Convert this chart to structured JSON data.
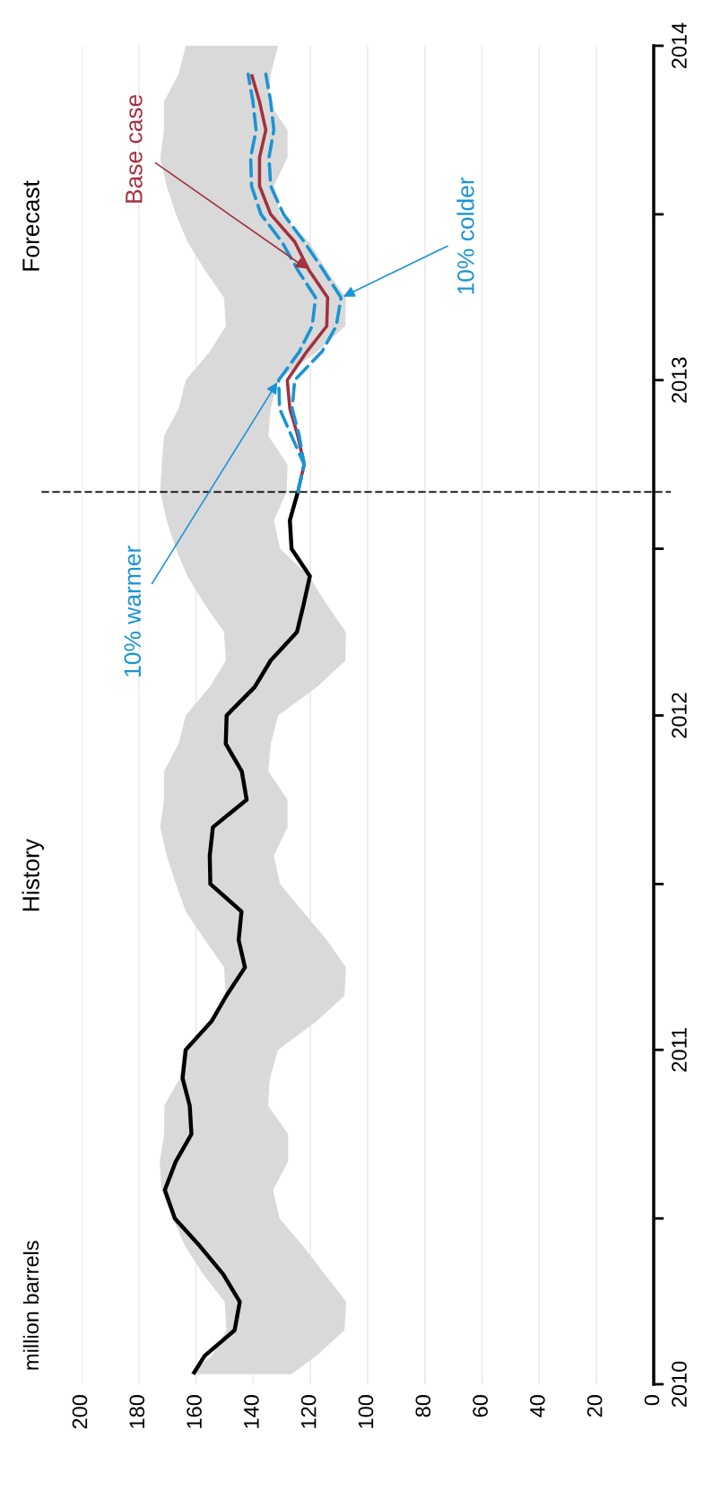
{
  "chart_data": {
    "type": "line",
    "ylabel": "million barrels",
    "annotations": [
      "History",
      "Forecast",
      {
        "text": "Base case",
        "y": "2013-05",
        "x": 120.5
      },
      {
        "text": "10% warmer",
        "y": "2013-01",
        "x": 131.1
      },
      {
        "text": "10% colder",
        "y": "2013-04",
        "x": 109.3
      }
    ],
    "orientation": "horizontal",
    "ylim": [
      "2010-01",
      "2014-01"
    ],
    "yticks": [
      {
        "value": "2010-01",
        "label": "2010"
      },
      {
        "value": "2010-07",
        "label": null
      },
      {
        "value": "2011-01",
        "label": "2011"
      },
      {
        "value": "2011-07",
        "label": null
      },
      {
        "value": "2012-01",
        "label": "2012"
      },
      {
        "value": "2012-07",
        "label": null
      },
      {
        "value": "2013-01",
        "label": "2013"
      },
      {
        "value": "2013-07",
        "label": null
      },
      {
        "value": "2014-01",
        "label": "2014"
      }
    ],
    "xlim": [
      200,
      0
    ],
    "xticks": [
      0,
      20,
      40,
      60,
      80,
      100,
      120,
      140,
      160,
      180,
      200
    ],
    "grid": "x",
    "line_style": "solid",
    "ref_lines": [
      {
        "axis": "y",
        "value": "2012-09",
        "line_style": "dashed",
        "color": "#000000"
      }
    ],
    "series": [
      {
        "color": "#000000",
        "x": [
          "2010-01-12",
          "2010-02",
          "2010-03",
          "2010-04",
          "2010-05",
          "2010-06",
          "2010-07",
          "2010-08",
          "2010-09",
          "2010-10",
          "2010-11",
          "2010-12",
          "2011-01",
          "2011-02",
          "2011-03",
          "2011-04",
          "2011-05",
          "2011-06",
          "2011-07",
          "2011-08",
          "2011-09",
          "2011-10",
          "2011-11",
          "2011-12",
          "2012-01",
          "2012-02",
          "2012-03",
          "2012-04",
          "2012-05",
          "2012-06",
          "2012-07",
          "2012-08",
          "2012-09",
          "2012-10",
          "2012-11",
          "2012-12",
          "2013-01",
          "2013-02",
          "2013-03",
          "2013-04",
          "2013-05",
          "2013-06",
          "2013-07",
          "2013-08",
          "2013-09",
          "2013-10",
          "2013-11",
          "2013-12",
          "2014-01"
        ],
        "values": [
          161.0,
          157.0,
          146.5,
          144.7,
          150.5,
          158.7,
          167.4,
          170.9,
          167.1,
          161.6,
          162.2,
          164.7,
          163.6,
          154.6,
          149.4,
          142.9,
          145.1,
          144.1,
          155.0,
          155.2,
          154.1,
          142.3,
          144.0,
          149.6,
          149.3,
          139.5,
          133.9,
          124.7,
          122.4,
          120.2,
          126.6,
          127.2,
          124.4,
          null,
          null,
          null,
          null,
          null,
          null,
          null,
          null,
          null,
          null,
          null,
          null,
          null,
          null,
          null,
          null
        ],
        "upper": [
          162.2,
          154.5,
          149.4,
          150.0,
          157.5,
          163.9,
          168.0,
          172.1,
          172.7,
          171.1,
          171.1,
          165.7,
          164.5,
          155.2,
          149.6,
          150.2,
          156.9,
          163.6,
          167.0,
          170.3,
          172.5,
          171.2,
          171.2,
          166.1,
          163.6,
          155.2,
          149.6,
          150.2,
          156.9,
          163.0,
          167.0,
          170.3,
          172.5,
          172.0,
          171.2,
          166.1,
          163.6,
          155.2,
          149.6,
          150.2,
          156.9,
          163.0,
          167.0,
          170.3,
          172.5,
          171.2,
          171.2,
          166.1,
          163.6
        ],
        "lower": [
          126.7,
          117.9,
          108.1,
          107.5,
          115.0,
          122.6,
          130.8,
          133.1,
          127.8,
          127.8,
          134.8,
          134.2,
          131.3,
          117.9,
          108.1,
          107.6,
          114.3,
          122.7,
          130.6,
          132.8,
          128.0,
          128.0,
          134.7,
          133.9,
          131.3,
          117.7,
          107.8,
          107.6,
          114.3,
          120.5,
          130.6,
          132.8,
          128.3,
          128.0,
          134.7,
          133.9,
          131.3,
          117.7,
          107.8,
          107.6,
          114.3,
          120.5,
          130.6,
          132.8,
          128.0,
          128.0,
          134.7,
          133.9,
          131.3
        ]
      },
      {
        "color": "#a3313f",
        "x": [
          "2012-09",
          "2012-10",
          "2012-11",
          "2012-12",
          "2013-01",
          "2013-02",
          "2013-03",
          "2013-04",
          "2013-05",
          "2013-06",
          "2013-07",
          "2013-08",
          "2013-09",
          "2013-10",
          "2013-11",
          "2013-12"
        ],
        "values": [
          124.4,
          122.2,
          124.4,
          127.2,
          128.1,
          121.3,
          114.3,
          114.0,
          120.5,
          125.5,
          133.9,
          137.8,
          137.8,
          135.6,
          137.8,
          140.6
        ]
      },
      {
        "color": "#1a94d4",
        "line_style": "dashed",
        "x": [
          "2012-09",
          "2012-10",
          "2012-11",
          "2012-12",
          "2013-01",
          "2013-02",
          "2013-03",
          "2013-04",
          "2013-05",
          "2013-06",
          "2013-07",
          "2013-08",
          "2013-09",
          "2013-10",
          "2013-11",
          "2013-12"
        ],
        "values": [
          124.4,
          122.2,
          126.6,
          130.8,
          131.1,
          123.9,
          119.4,
          118.2,
          124.4,
          130.0,
          137.3,
          140.6,
          140.9,
          139.0,
          140.1,
          141.8
        ]
      },
      {
        "color": "#1a94d4",
        "line_style": "dashed",
        "x": [
          "2012-09",
          "2012-10",
          "2012-11",
          "2012-12",
          "2013-01",
          "2013-02",
          "2013-03",
          "2013-04",
          "2013-05",
          "2013-06",
          "2013-07",
          "2013-08",
          "2013-09",
          "2013-10",
          "2013-11",
          "2013-12"
        ],
        "values": [
          124.4,
          122.2,
          123.9,
          126.4,
          125.5,
          116.0,
          111.0,
          109.3,
          115.5,
          122.2,
          129.4,
          133.9,
          134.5,
          132.8,
          133.9,
          135.6
        ]
      }
    ]
  }
}
